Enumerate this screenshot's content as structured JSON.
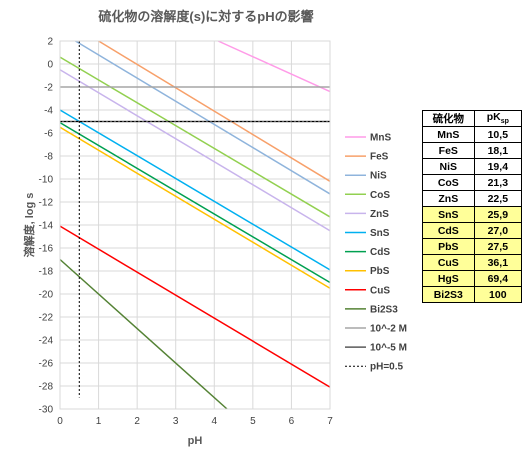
{
  "chart_data": {
    "type": "line",
    "title": "硫化物の溶解度(s)に対するpHの影響",
    "xlabel": "pH",
    "ylabel": "溶解度, log s",
    "xlim": [
      0,
      7
    ],
    "ylim": [
      -30,
      2
    ],
    "x_ticks": [
      0,
      1,
      2,
      3,
      4,
      5,
      6,
      7
    ],
    "y_ticks": [
      2,
      0,
      -2,
      -4,
      -6,
      -8,
      -10,
      -12,
      -14,
      -16,
      -18,
      -20,
      -22,
      -24,
      -26,
      -28,
      -30
    ],
    "grid": true,
    "legend_position": "right",
    "series": [
      {
        "name": "MnS",
        "color": "#ff9be8",
        "points": [
          [
            4.1,
            2
          ],
          [
            7,
            -2.4
          ]
        ]
      },
      {
        "name": "FeS",
        "color": "#f7a06a",
        "points": [
          [
            1.0,
            2
          ],
          [
            7,
            -10.2
          ]
        ]
      },
      {
        "name": "NiS",
        "color": "#8fb4dc",
        "points": [
          [
            0.4,
            2
          ],
          [
            7,
            -11.3
          ]
        ]
      },
      {
        "name": "CoS",
        "color": "#92d050",
        "points": [
          [
            0,
            0.6
          ],
          [
            7,
            -13.3
          ]
        ]
      },
      {
        "name": "ZnS",
        "color": "#c8b4ec",
        "points": [
          [
            0,
            -0.5
          ],
          [
            7,
            -14.5
          ]
        ]
      },
      {
        "name": "SnS",
        "color": "#00b0f0",
        "points": [
          [
            0,
            -4.0
          ],
          [
            7,
            -17.9
          ]
        ]
      },
      {
        "name": "CdS",
        "color": "#00a050",
        "points": [
          [
            0,
            -5.1
          ],
          [
            7,
            -19.0
          ]
        ]
      },
      {
        "name": "PbS",
        "color": "#ffc000",
        "points": [
          [
            0,
            -5.5
          ],
          [
            7,
            -19.5
          ]
        ]
      },
      {
        "name": "CuS",
        "color": "#ff0000",
        "points": [
          [
            0,
            -14.1
          ],
          [
            7,
            -28.1
          ]
        ]
      },
      {
        "name": "Bi2S3",
        "color": "#548235",
        "points": [
          [
            0,
            -17.0
          ],
          [
            4.33,
            -30
          ]
        ]
      },
      {
        "name": "10^-2 M",
        "color": "#a6a6a6",
        "points": [
          [
            0,
            -2
          ],
          [
            7,
            -2
          ]
        ]
      },
      {
        "name": "10^-5 M",
        "color": "#595959",
        "points": [
          [
            0,
            -5
          ],
          [
            7,
            -5
          ]
        ]
      },
      {
        "name": "pH=0.5",
        "color": "#000000",
        "dashed": true,
        "points": [
          [
            0.5,
            2
          ],
          [
            0.5,
            -29
          ]
        ]
      }
    ],
    "ph_dotted_hline": {
      "y": -5,
      "color": "#000000"
    }
  },
  "table": {
    "headers": [
      "硫化物",
      "pK"
    ],
    "header_sub": "sp",
    "rows": [
      {
        "name": "MnS",
        "value": "10,5",
        "highlight": false
      },
      {
        "name": "FeS",
        "value": "18,1",
        "highlight": false
      },
      {
        "name": "NiS",
        "value": "19,4",
        "highlight": false
      },
      {
        "name": "CoS",
        "value": "21,3",
        "highlight": false
      },
      {
        "name": "ZnS",
        "value": "22,5",
        "highlight": false
      },
      {
        "name": "SnS",
        "value": "25,9",
        "highlight": true
      },
      {
        "name": "CdS",
        "value": "27,0",
        "highlight": true
      },
      {
        "name": "PbS",
        "value": "27,5",
        "highlight": true
      },
      {
        "name": "CuS",
        "value": "36,1",
        "highlight": true
      },
      {
        "name": "HgS",
        "value": "69,4",
        "highlight": true
      },
      {
        "name": "Bi2S3",
        "value": "100",
        "highlight": true
      }
    ]
  }
}
